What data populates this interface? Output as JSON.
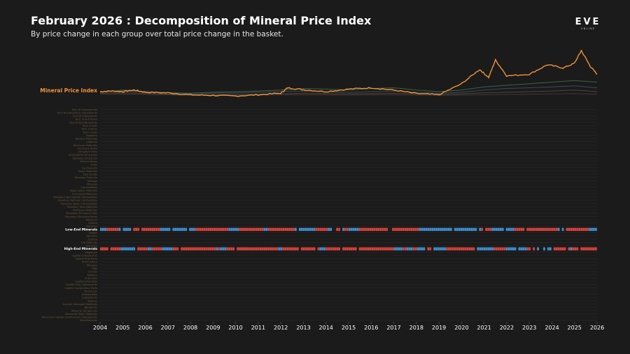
{
  "header": {
    "title": "February 2026 : Decomposition of Mineral Price Index",
    "subtitle": "By price change in each group over total price change in the basket."
  },
  "logo": {
    "main": "EVE",
    "sub": "ONLINE"
  },
  "colors": {
    "background": "#1b1b1b",
    "index_line": "#f0923a",
    "index_label": "#f0923a",
    "row_label": "#6b5a3a",
    "highlight_label": "#ffffff",
    "positive": "#d9423c",
    "negative": "#3f8fd1",
    "grid": "#2a2a2a",
    "other_series": [
      "#3d6b4a",
      "#3a5068",
      "#5a4a3a",
      "#4a3a3a"
    ]
  },
  "chart_data": {
    "type": "heatmap",
    "title": "February 2026 : Decomposition of Mineral Price Index",
    "index_series_label": "Mineral Price Index",
    "x_start_year": 2004,
    "x_end_year": 2026,
    "x_ticks": [
      "2004",
      "2005",
      "2006",
      "2007",
      "2008",
      "2009",
      "2010",
      "2011",
      "2012",
      "2013",
      "2014",
      "2015",
      "2016",
      "2017",
      "2018",
      "2019",
      "2020",
      "2021",
      "2022",
      "2023",
      "2024",
      "2025",
      "2026"
    ],
    "index_values_yearly": [
      {
        "year": 2004,
        "value": 1.0
      },
      {
        "year": 2004.5,
        "value": 1.02
      },
      {
        "year": 2005,
        "value": 1.0
      },
      {
        "year": 2005.5,
        "value": 1.05
      },
      {
        "year": 2006,
        "value": 0.98
      },
      {
        "year": 2007,
        "value": 0.96
      },
      {
        "year": 2008,
        "value": 0.9
      },
      {
        "year": 2009,
        "value": 0.88
      },
      {
        "year": 2010,
        "value": 0.86
      },
      {
        "year": 2011,
        "value": 0.9
      },
      {
        "year": 2012,
        "value": 0.95
      },
      {
        "year": 2012.3,
        "value": 1.12
      },
      {
        "year": 2013,
        "value": 1.06
      },
      {
        "year": 2014,
        "value": 1.0
      },
      {
        "year": 2015,
        "value": 1.08
      },
      {
        "year": 2016,
        "value": 1.12
      },
      {
        "year": 2017,
        "value": 1.05
      },
      {
        "year": 2018,
        "value": 0.94
      },
      {
        "year": 2019,
        "value": 0.9
      },
      {
        "year": 2020,
        "value": 1.25
      },
      {
        "year": 2020.8,
        "value": 1.7
      },
      {
        "year": 2021.2,
        "value": 1.45
      },
      {
        "year": 2021.5,
        "value": 2.0
      },
      {
        "year": 2022,
        "value": 1.5
      },
      {
        "year": 2023,
        "value": 1.55
      },
      {
        "year": 2023.8,
        "value": 1.85
      },
      {
        "year": 2024.5,
        "value": 1.75
      },
      {
        "year": 2025,
        "value": 1.9
      },
      {
        "year": 2025.3,
        "value": 2.3
      },
      {
        "year": 2025.7,
        "value": 1.8
      },
      {
        "year": 2026,
        "value": 1.55
      }
    ],
    "rows": [
      "Tech III Components",
      "Tech III Subsystem Components",
      "Tech III Subsystems",
      "Tech III Hull Items",
      "Tech III Hull Blueprints",
      "Tech II Hulls",
      "Tech II Items",
      "Tech I Hulls",
      "Boosters",
      "Booster Materials",
      "Implants",
      "Structure Materials",
      "Structure Items",
      "Structure Hulls",
      "Sovereignty Structures",
      "Starbase Structures",
      "Mineral Items",
      "Fuels",
      "Ice Products",
      "Moon Materials",
      "Gas Clouds",
      "Reaction Products",
      "Salvage",
      "Minerals",
      "Commodities",
      "Deep Space Materials",
      "Processed Materials",
      "Planetary Specialized Commodities",
      "Planetary Refined Commodities",
      "Planetary Basic Commodities",
      "Planetary Raw Materials",
      "Planetary Materials",
      "Planetary Structure Hulls",
      "Planetary Structure Items",
      "Tritanium",
      "Pyerite",
      "Mexallon",
      "Low-End Minerals",
      "Isogen",
      "Nocxium",
      "Zydrine",
      "Ore Products",
      "Morphite",
      "High-End Minerals",
      "Megacyte",
      "Capital Components",
      "Capital Ship Parts",
      "Ammunition",
      "Modules",
      "Rigs",
      "Drones",
      "Fighters",
      "Ship Hulls",
      "Capital Ship Hulls",
      "Capital Ship Components",
      "Capital Construction Parts",
      "Structures",
      "Deployables",
      "Subsystems",
      "Apparel",
      "Ancient Salvaged Materials",
      "Blueprints",
      "Alloys & Compounds",
      "Advanced Moon Materials",
      "Advanced Capital Construction Components",
      "Miscellaneous"
    ],
    "highlight_rows": [
      "Low-End Minerals",
      "High-End Minerals"
    ]
  }
}
